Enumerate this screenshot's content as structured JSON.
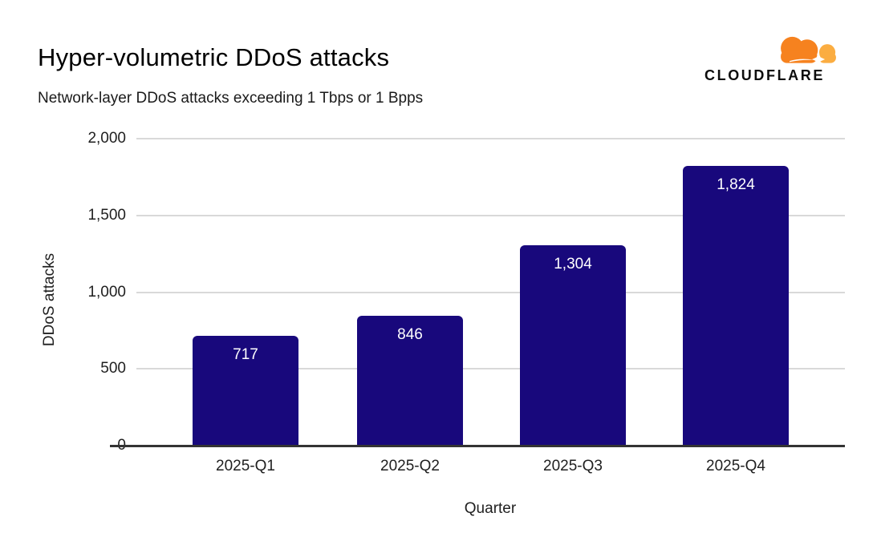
{
  "header": {
    "title": "Hyper-volumetric DDoS attacks",
    "subtitle": "Network-layer DDoS attacks exceeding 1 Tbps or 1 Bpps"
  },
  "brand": {
    "wordmark": "CLOUDFLARE",
    "logo_icon": "cloudflare-cloud-icon",
    "cloud_primary_color": "#F6821F",
    "cloud_secondary_color": "#FBAD41",
    "wordmark_color": "#0D0D0D"
  },
  "chart_data": {
    "type": "bar",
    "title": "Hyper-volumetric DDoS attacks",
    "subtitle": "Network-layer DDoS attacks exceeding 1 Tbps or 1 Bpps",
    "categories": [
      "2025-Q1",
      "2025-Q2",
      "2025-Q3",
      "2025-Q4"
    ],
    "values": [
      717,
      846,
      1304,
      1824
    ],
    "value_labels": [
      "717",
      "846",
      "1,304",
      "1,824"
    ],
    "xlabel": "Quarter",
    "ylabel": "DDoS attacks",
    "ylim": [
      0,
      2000
    ],
    "yticks": [
      0,
      500,
      1000,
      1500,
      2000
    ],
    "ytick_labels": [
      "0",
      "500",
      "1,000",
      "1,500",
      "2,000"
    ],
    "grid": "horizontal-only",
    "legend": "none",
    "bar_color": "#18087C",
    "bar_label_color": "#FFFFFF",
    "gridline_color": "#D9D9D9",
    "axis_line_color": "#333333"
  }
}
